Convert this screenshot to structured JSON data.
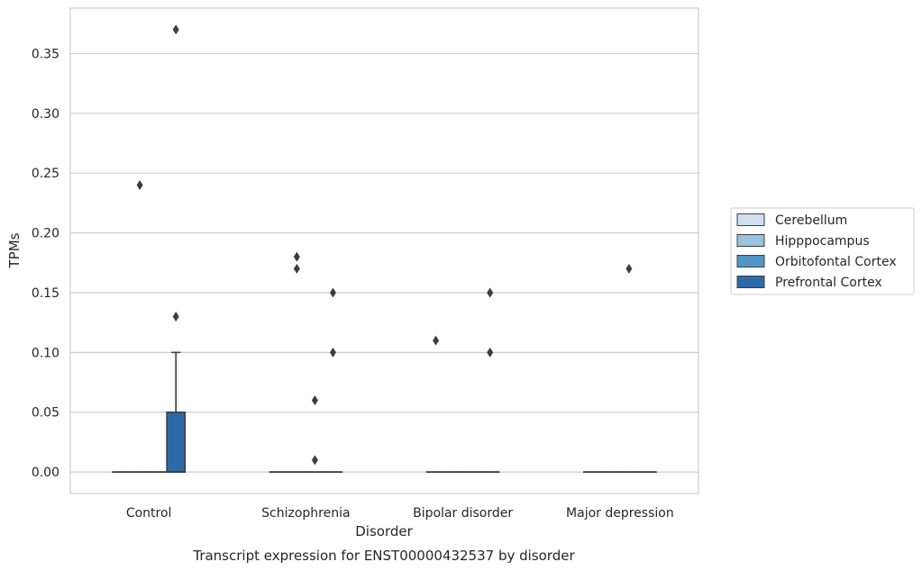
{
  "chart_data": {
    "type": "boxplot",
    "xlabel": "Disorder",
    "ylabel": "TPMs",
    "caption": "Transcript expression for ENST00000432537 by disorder",
    "ylim": [
      -0.018,
      0.388
    ],
    "yticks": [
      "0.00",
      "0.05",
      "0.10",
      "0.15",
      "0.20",
      "0.25",
      "0.30",
      "0.35"
    ],
    "yticks_values": [
      0,
      0.05,
      0.1,
      0.15,
      0.2,
      0.25,
      0.3,
      0.35
    ],
    "grid": "horizontal",
    "legend_position": "right",
    "categories": [
      "Control",
      "Schizophrenia",
      "Bipolar disorder",
      "Major depression"
    ],
    "series": [
      {
        "name": "Cerebellum",
        "color": "#d0e0f0",
        "boxes": [
          {
            "q1": 0,
            "median": 0,
            "q3": 0,
            "whisker_low": 0,
            "whisker_high": 0,
            "outliers": []
          },
          {
            "q1": 0,
            "median": 0,
            "q3": 0,
            "whisker_low": 0,
            "whisker_high": 0,
            "outliers": []
          },
          {
            "q1": 0,
            "median": 0,
            "q3": 0,
            "whisker_low": 0,
            "whisker_high": 0,
            "outliers": [
              0.11
            ]
          },
          {
            "q1": 0,
            "median": 0,
            "q3": 0,
            "whisker_low": 0,
            "whisker_high": 0,
            "outliers": []
          }
        ]
      },
      {
        "name": "Hipppocampus",
        "color": "#98c2dd",
        "boxes": [
          {
            "q1": 0,
            "median": 0,
            "q3": 0,
            "whisker_low": 0,
            "whisker_high": 0,
            "outliers": [
              0.24
            ]
          },
          {
            "q1": 0,
            "median": 0,
            "q3": 0,
            "whisker_low": 0,
            "whisker_high": 0,
            "outliers": [
              0.18,
              0.17
            ]
          },
          {
            "q1": 0,
            "median": 0,
            "q3": 0,
            "whisker_low": 0,
            "whisker_high": 0,
            "outliers": []
          },
          {
            "q1": 0,
            "median": 0,
            "q3": 0,
            "whisker_low": 0,
            "whisker_high": 0,
            "outliers": []
          }
        ]
      },
      {
        "name": "Orbitofontal Cortex",
        "color": "#5096c6",
        "boxes": [
          {
            "q1": 0,
            "median": 0,
            "q3": 0,
            "whisker_low": 0,
            "whisker_high": 0,
            "outliers": []
          },
          {
            "q1": 0,
            "median": 0,
            "q3": 0,
            "whisker_low": 0,
            "whisker_high": 0,
            "outliers": [
              0.06,
              0.01
            ]
          },
          {
            "q1": 0,
            "median": 0,
            "q3": 0,
            "whisker_low": 0,
            "whisker_high": 0,
            "outliers": []
          },
          {
            "q1": 0,
            "median": 0,
            "q3": 0,
            "whisker_low": 0,
            "whisker_high": 0,
            "outliers": [
              0.17
            ]
          }
        ]
      },
      {
        "name": "Prefrontal Cortex",
        "color": "#2b6aa6",
        "boxes": [
          {
            "q1": 0,
            "median": 0,
            "q3": 0.05,
            "whisker_low": 0,
            "whisker_high": 0.1,
            "outliers": [
              0.37,
              0.13
            ]
          },
          {
            "q1": 0,
            "median": 0,
            "q3": 0,
            "whisker_low": 0,
            "whisker_high": 0,
            "outliers": [
              0.15,
              0.1
            ]
          },
          {
            "q1": 0,
            "median": 0,
            "q3": 0,
            "whisker_low": 0,
            "whisker_high": 0,
            "outliers": [
              0.15,
              0.1
            ]
          },
          {
            "q1": 0,
            "median": 0,
            "q3": 0,
            "whisker_low": 0,
            "whisker_high": 0,
            "outliers": []
          }
        ]
      }
    ]
  }
}
